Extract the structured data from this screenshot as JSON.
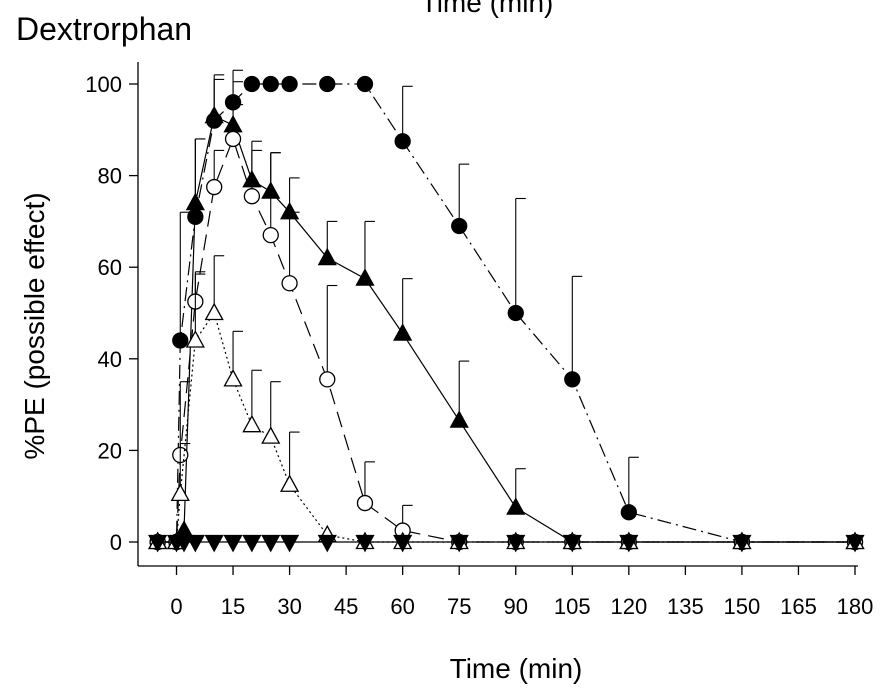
{
  "chart_data": {
    "type": "line",
    "title": "Dextrorphan",
    "top_clipped_label": "Time (min)",
    "xlabel": "Time (min)",
    "ylabel": "%PE (possible effect)",
    "xlim": [
      -7,
      182
    ],
    "ylim": [
      -5,
      105
    ],
    "xticks": [
      0,
      15,
      30,
      45,
      60,
      75,
      90,
      105,
      120,
      135,
      150,
      165,
      180
    ],
    "yticks": [
      0,
      20,
      40,
      60,
      80,
      100
    ],
    "grid": false,
    "series": [
      {
        "marker": "circle-filled",
        "line_style": "dash-dot",
        "points": [
          {
            "x": -5,
            "y": 0
          },
          {
            "x": 0,
            "y": 0
          },
          {
            "x": 1,
            "y": 44,
            "err": 28
          },
          {
            "x": 5,
            "y": 71,
            "err": 17
          },
          {
            "x": 10,
            "y": 92,
            "err": 9
          },
          {
            "x": 15,
            "y": 96,
            "err": 7
          },
          {
            "x": 20,
            "y": 100
          },
          {
            "x": 25,
            "y": 100
          },
          {
            "x": 30,
            "y": 100
          },
          {
            "x": 40,
            "y": 100
          },
          {
            "x": 50,
            "y": 100
          },
          {
            "x": 60,
            "y": 87.5,
            "err": 12
          },
          {
            "x": 75,
            "y": 69,
            "err": 13.5
          },
          {
            "x": 90,
            "y": 50,
            "err": 25
          },
          {
            "x": 105,
            "y": 35.5,
            "err": 22.5
          },
          {
            "x": 120,
            "y": 6.5,
            "err": 12
          },
          {
            "x": 150,
            "y": 0
          },
          {
            "x": 180,
            "y": 0
          }
        ]
      },
      {
        "marker": "triangle-up-filled",
        "line_style": "solid",
        "points": [
          {
            "x": -5,
            "y": 0
          },
          {
            "x": 0,
            "y": 0
          },
          {
            "x": 2,
            "y": 2.5
          },
          {
            "x": 5,
            "y": 74,
            "err": 14
          },
          {
            "x": 10,
            "y": 93,
            "err": 9
          },
          {
            "x": 15,
            "y": 91,
            "err": 9.5
          },
          {
            "x": 20,
            "y": 79,
            "err": 8.5
          },
          {
            "x": 25,
            "y": 76.5,
            "err": 8.5
          },
          {
            "x": 30,
            "y": 72,
            "err": 7.5
          },
          {
            "x": 40,
            "y": 62,
            "err": 8
          },
          {
            "x": 50,
            "y": 57.5,
            "err": 12.5
          },
          {
            "x": 60,
            "y": 45.5,
            "err": 12
          },
          {
            "x": 75,
            "y": 26.5,
            "err": 13
          },
          {
            "x": 90,
            "y": 7.5,
            "err": 8.5
          },
          {
            "x": 105,
            "y": 0
          },
          {
            "x": 120,
            "y": 0
          },
          {
            "x": 150,
            "y": 0
          },
          {
            "x": 180,
            "y": 0
          }
        ]
      },
      {
        "marker": "circle-open",
        "line_style": "long-dash",
        "points": [
          {
            "x": -5,
            "y": 0
          },
          {
            "x": 0,
            "y": 0
          },
          {
            "x": 1,
            "y": 19,
            "err": 16
          },
          {
            "x": 5,
            "y": 52.5,
            "err": 6
          },
          {
            "x": 10,
            "y": 77.5,
            "err": 8
          },
          {
            "x": 15,
            "y": 88,
            "err": 7.5
          },
          {
            "x": 20,
            "y": 75.5,
            "err": 10
          },
          {
            "x": 25,
            "y": 67,
            "err": 18
          },
          {
            "x": 30,
            "y": 56.5,
            "err": 15.5
          },
          {
            "x": 40,
            "y": 35.5,
            "err": 20.5
          },
          {
            "x": 50,
            "y": 8.5,
            "err": 9
          },
          {
            "x": 60,
            "y": 2.5,
            "err": 5.5
          },
          {
            "x": 75,
            "y": 0
          },
          {
            "x": 90,
            "y": 0
          },
          {
            "x": 105,
            "y": 0
          },
          {
            "x": 120,
            "y": 0
          },
          {
            "x": 150,
            "y": 0
          },
          {
            "x": 180,
            "y": 0
          }
        ]
      },
      {
        "marker": "triangle-up-open",
        "line_style": "dotted",
        "points": [
          {
            "x": -5,
            "y": 0
          },
          {
            "x": 0,
            "y": 0
          },
          {
            "x": 1,
            "y": 10.5,
            "err": 11
          },
          {
            "x": 5,
            "y": 44,
            "err": 15
          },
          {
            "x": 10,
            "y": 50,
            "err": 12.5
          },
          {
            "x": 15,
            "y": 35.5,
            "err": 10.5
          },
          {
            "x": 20,
            "y": 25.5,
            "err": 12
          },
          {
            "x": 25,
            "y": 23,
            "err": 12
          },
          {
            "x": 30,
            "y": 12.5,
            "err": 11.5
          },
          {
            "x": 40,
            "y": 1.5
          },
          {
            "x": 50,
            "y": 0
          },
          {
            "x": 60,
            "y": 0
          },
          {
            "x": 75,
            "y": 0
          },
          {
            "x": 90,
            "y": 0
          },
          {
            "x": 105,
            "y": 0
          },
          {
            "x": 120,
            "y": 0
          },
          {
            "x": 150,
            "y": 0
          },
          {
            "x": 180,
            "y": 0
          }
        ]
      },
      {
        "marker": "triangle-down-filled",
        "line_style": "solid",
        "points": [
          {
            "x": -5,
            "y": 0
          },
          {
            "x": 0,
            "y": 0
          },
          {
            "x": 2,
            "y": 0
          },
          {
            "x": 5,
            "y": 0
          },
          {
            "x": 10,
            "y": 0
          },
          {
            "x": 15,
            "y": 0
          },
          {
            "x": 20,
            "y": 0
          },
          {
            "x": 25,
            "y": 0
          },
          {
            "x": 30,
            "y": 0
          },
          {
            "x": 40,
            "y": 0
          },
          {
            "x": 50,
            "y": 0
          },
          {
            "x": 60,
            "y": 0
          },
          {
            "x": 75,
            "y": 0
          },
          {
            "x": 90,
            "y": 0
          },
          {
            "x": 105,
            "y": 0
          },
          {
            "x": 120,
            "y": 0
          },
          {
            "x": 150,
            "y": 0
          },
          {
            "x": 180,
            "y": 0
          }
        ]
      }
    ]
  }
}
